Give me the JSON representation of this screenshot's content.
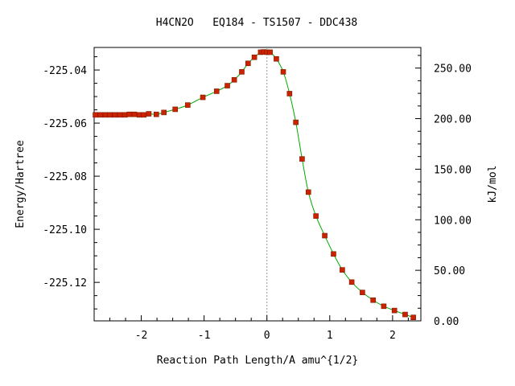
{
  "chart_data": {
    "type": "line",
    "title": "H4CN2O   EQ184 - TS1507 - DDC438",
    "xlabel": "Reaction Path Length/A amu^{1/2}",
    "ylabel": "Energy/Hartree",
    "y2label": "kJ/mol",
    "xlim": [
      -2.75,
      2.45
    ],
    "ylim": [
      -225.1345,
      -225.0315
    ],
    "y2lim": [
      0,
      270.4
    ],
    "x_ticks": [
      -2,
      -1,
      0,
      1,
      2
    ],
    "x_tick_labels": [
      "-2",
      "-1",
      "0",
      "1",
      "2"
    ],
    "y_ticks": [
      -225.04,
      -225.06,
      -225.08,
      -225.1,
      -225.12
    ],
    "y_tick_labels": [
      "-225.04",
      "-225.06",
      "-225.08",
      "-225.10",
      "-225.12"
    ],
    "y2_ticks": [
      250,
      200,
      150,
      100,
      50,
      0
    ],
    "y2_tick_labels": [
      "250.00",
      "200.00",
      "150.00",
      "100.00",
      "50.00",
      "0.00"
    ],
    "ts_x": 0,
    "grid": false,
    "colors": {
      "line": "#00aa00",
      "marker": "#cc2200",
      "ts_line": "#999999"
    },
    "series": [
      {
        "x": [
          -2.73,
          -2.65,
          -2.57,
          -2.5,
          -2.42,
          -2.34,
          -2.26,
          -2.19,
          -2.11,
          -2.03,
          -1.96,
          -1.88,
          -1.76,
          -1.64,
          -1.46,
          -1.26,
          -1.02,
          -0.8,
          -0.63,
          -0.52,
          -0.4,
          -0.3,
          -0.2,
          -0.1,
          -0.05,
          0.0,
          0.05,
          0.15,
          0.26,
          0.36,
          0.46,
          0.56,
          0.66,
          0.78,
          0.92,
          1.06,
          1.2,
          1.35,
          1.52,
          1.69,
          1.86,
          2.03,
          2.2,
          2.33
        ],
        "y": [
          -225.0569,
          -225.0569,
          -225.0569,
          -225.0569,
          -225.0569,
          -225.0569,
          -225.0569,
          -225.0567,
          -225.0567,
          -225.0569,
          -225.0569,
          -225.0565,
          -225.0567,
          -225.056,
          -225.0548,
          -225.0532,
          -225.0503,
          -225.048,
          -225.0459,
          -225.0437,
          -225.0407,
          -225.0375,
          -225.0352,
          -225.0333,
          -225.0332,
          -225.0333,
          -225.0333,
          -225.0358,
          -225.0407,
          -225.0489,
          -225.0597,
          -225.0735,
          -225.086,
          -225.095,
          -225.1024,
          -225.1093,
          -225.1153,
          -225.1199,
          -225.1238,
          -225.1267,
          -225.129,
          -225.1306,
          -225.1321,
          -225.1332
        ]
      }
    ]
  }
}
